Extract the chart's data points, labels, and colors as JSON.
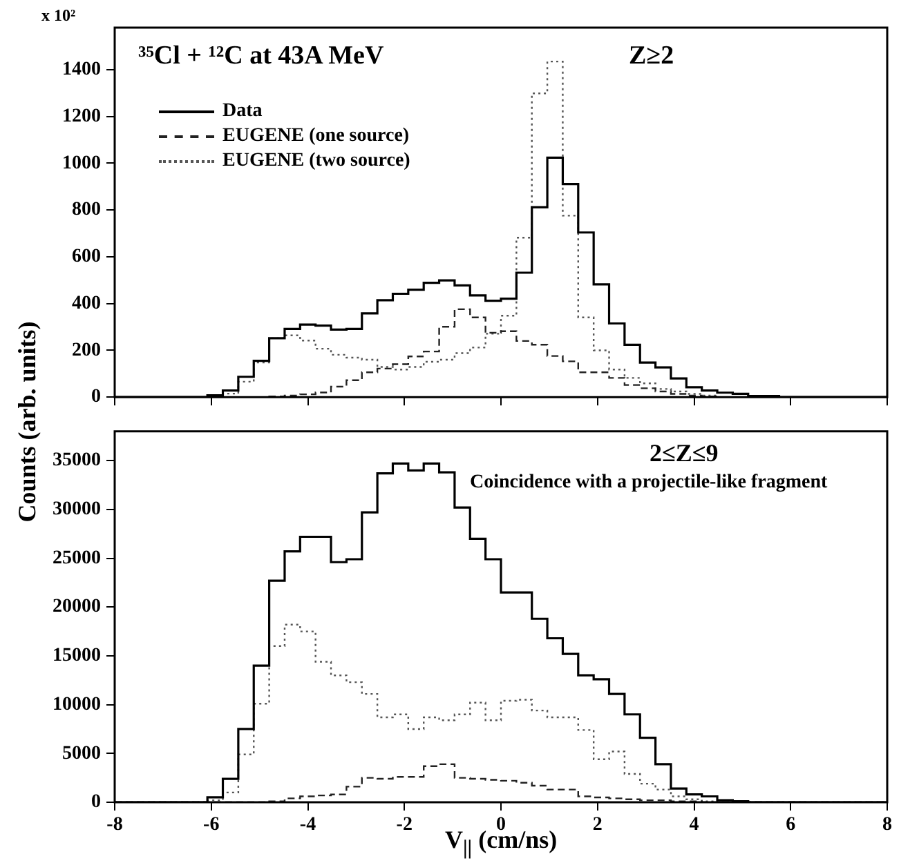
{
  "chart_data": [
    {
      "type": "histogram",
      "ylabel": "Counts (arb. units)",
      "annotations": [
        "x 10²",
        "³⁵Cl + ¹²C at 43A MeV",
        "Z≥2"
      ],
      "legend": "top left",
      "tick_labels": "y",
      "xlim": [
        -8,
        8
      ],
      "xticks": [
        -8,
        -6,
        -4,
        -2,
        0,
        2,
        4,
        6,
        8
      ],
      "ylim": [
        0,
        1580
      ],
      "yticks": [
        0,
        200,
        400,
        600,
        800,
        1000,
        1200,
        1400
      ],
      "bins": [
        -8,
        -7.68,
        -7.36,
        -7.04,
        -6.72,
        -6.4,
        -6.08,
        -5.76,
        -5.44,
        -5.12,
        -4.8,
        -4.48,
        -4.16,
        -3.84,
        -3.52,
        -3.2,
        -2.88,
        -2.56,
        -2.24,
        -1.92,
        -1.6,
        -1.28,
        -0.96,
        -0.64,
        -0.32,
        0,
        0.32,
        0.64,
        0.96,
        1.28,
        1.6,
        1.92,
        2.24,
        2.56,
        2.88,
        3.2,
        3.52,
        3.84,
        4.16,
        4.48,
        4.8,
        5.12,
        5.44,
        5.76,
        6.08,
        6.4,
        6.72,
        7.04,
        7.36,
        7.68,
        8
      ],
      "series": [
        {
          "name": "Data",
          "color": "#000000",
          "line_style": "solid",
          "values": [
            0,
            0,
            0,
            0,
            0,
            0,
            8,
            28,
            87,
            155,
            252,
            292,
            310,
            306,
            289,
            292,
            358,
            414,
            442,
            459,
            489,
            499,
            478,
            435,
            412,
            421,
            532,
            812,
            1024,
            911,
            704,
            482,
            315,
            224,
            148,
            127,
            80,
            42,
            28,
            19,
            14,
            5,
            5,
            0,
            0,
            0,
            0,
            0,
            0,
            0
          ]
        },
        {
          "name": "EUGENE (one source)",
          "color": "#222222",
          "line_style": "dashed",
          "values": [
            0,
            0,
            0,
            0,
            0,
            0,
            0,
            0,
            0,
            0,
            3,
            7,
            12,
            20,
            45,
            72,
            106,
            122,
            141,
            174,
            195,
            301,
            376,
            341,
            275,
            282,
            240,
            224,
            176,
            153,
            106,
            106,
            82,
            52,
            38,
            24,
            14,
            7,
            3,
            0,
            0,
            0,
            0,
            0,
            0,
            0,
            0,
            0,
            0,
            0
          ]
        },
        {
          "name": "EUGENE (two source)",
          "color": "#555555",
          "line_style": "dotted",
          "values": [
            0,
            0,
            0,
            0,
            0,
            0,
            0,
            15,
            66,
            148,
            252,
            264,
            242,
            207,
            181,
            169,
            160,
            129,
            118,
            129,
            151,
            160,
            188,
            212,
            271,
            348,
            682,
            1299,
            1435,
            776,
            341,
            200,
            118,
            82,
            59,
            35,
            24,
            14,
            7,
            0,
            0,
            0,
            0,
            0,
            0,
            0,
            0,
            0,
            0,
            0
          ]
        }
      ]
    },
    {
      "type": "histogram",
      "xlabel": "V$_{||}$ (cm/ns)",
      "annotations": [
        "2≤Z≤9",
        "Coincidence with a projectile-like fragment"
      ],
      "xlim": [
        -8,
        8
      ],
      "xticks": [
        -8,
        -6,
        -4,
        -2,
        0,
        2,
        4,
        6,
        8
      ],
      "ylim": [
        0,
        38000
      ],
      "yticks": [
        0,
        5000,
        10000,
        15000,
        20000,
        25000,
        30000,
        35000
      ],
      "bins": [
        -8,
        -7.68,
        -7.36,
        -7.04,
        -6.72,
        -6.4,
        -6.08,
        -5.76,
        -5.44,
        -5.12,
        -4.8,
        -4.48,
        -4.16,
        -3.84,
        -3.52,
        -3.2,
        -2.88,
        -2.56,
        -2.24,
        -1.92,
        -1.6,
        -1.28,
        -0.96,
        -0.64,
        -0.32,
        0,
        0.32,
        0.64,
        0.96,
        1.28,
        1.6,
        1.92,
        2.24,
        2.56,
        2.88,
        3.2,
        3.52,
        3.84,
        4.16,
        4.48,
        4.8,
        5.12,
        5.44,
        5.76,
        6.08,
        6.4,
        6.72,
        7.04,
        7.36,
        7.68,
        8
      ],
      "series": [
        {
          "color": "#000000",
          "line_style": "solid",
          "values": [
            0,
            0,
            0,
            0,
            0,
            0,
            500,
            2400,
            7500,
            14000,
            22700,
            25700,
            27200,
            27200,
            24600,
            24900,
            29700,
            33700,
            34700,
            34000,
            34700,
            33800,
            30200,
            27000,
            24900,
            21500,
            21500,
            18800,
            16800,
            15200,
            13000,
            12600,
            11100,
            9000,
            6600,
            3900,
            1400,
            800,
            600,
            200,
            100,
            0,
            0,
            0,
            0,
            0,
            0,
            0,
            0,
            0
          ]
        },
        {
          "color": "#222222",
          "line_style": "dashed",
          "values": [
            0,
            0,
            0,
            0,
            0,
            0,
            0,
            0,
            0,
            0,
            100,
            400,
            600,
            700,
            800,
            1600,
            2500,
            2400,
            2600,
            2600,
            3700,
            3900,
            2500,
            2400,
            2300,
            2200,
            2000,
            1700,
            1300,
            1300,
            600,
            500,
            400,
            300,
            200,
            200,
            100,
            100,
            0,
            0,
            0,
            0,
            0,
            0,
            0,
            0,
            0,
            0,
            0,
            0
          ]
        },
        {
          "color": "#555555",
          "line_style": "dotted",
          "values": [
            0,
            0,
            0,
            0,
            0,
            0,
            200,
            1000,
            4900,
            10100,
            16000,
            18200,
            17500,
            14400,
            13000,
            12300,
            11100,
            8700,
            9000,
            7500,
            8700,
            8400,
            9000,
            10200,
            8400,
            10400,
            10500,
            9400,
            8700,
            8700,
            7400,
            4400,
            5200,
            2900,
            1900,
            1300,
            600,
            300,
            100,
            0,
            0,
            0,
            0,
            0,
            0,
            0,
            0,
            0,
            0,
            0
          ]
        }
      ]
    }
  ]
}
